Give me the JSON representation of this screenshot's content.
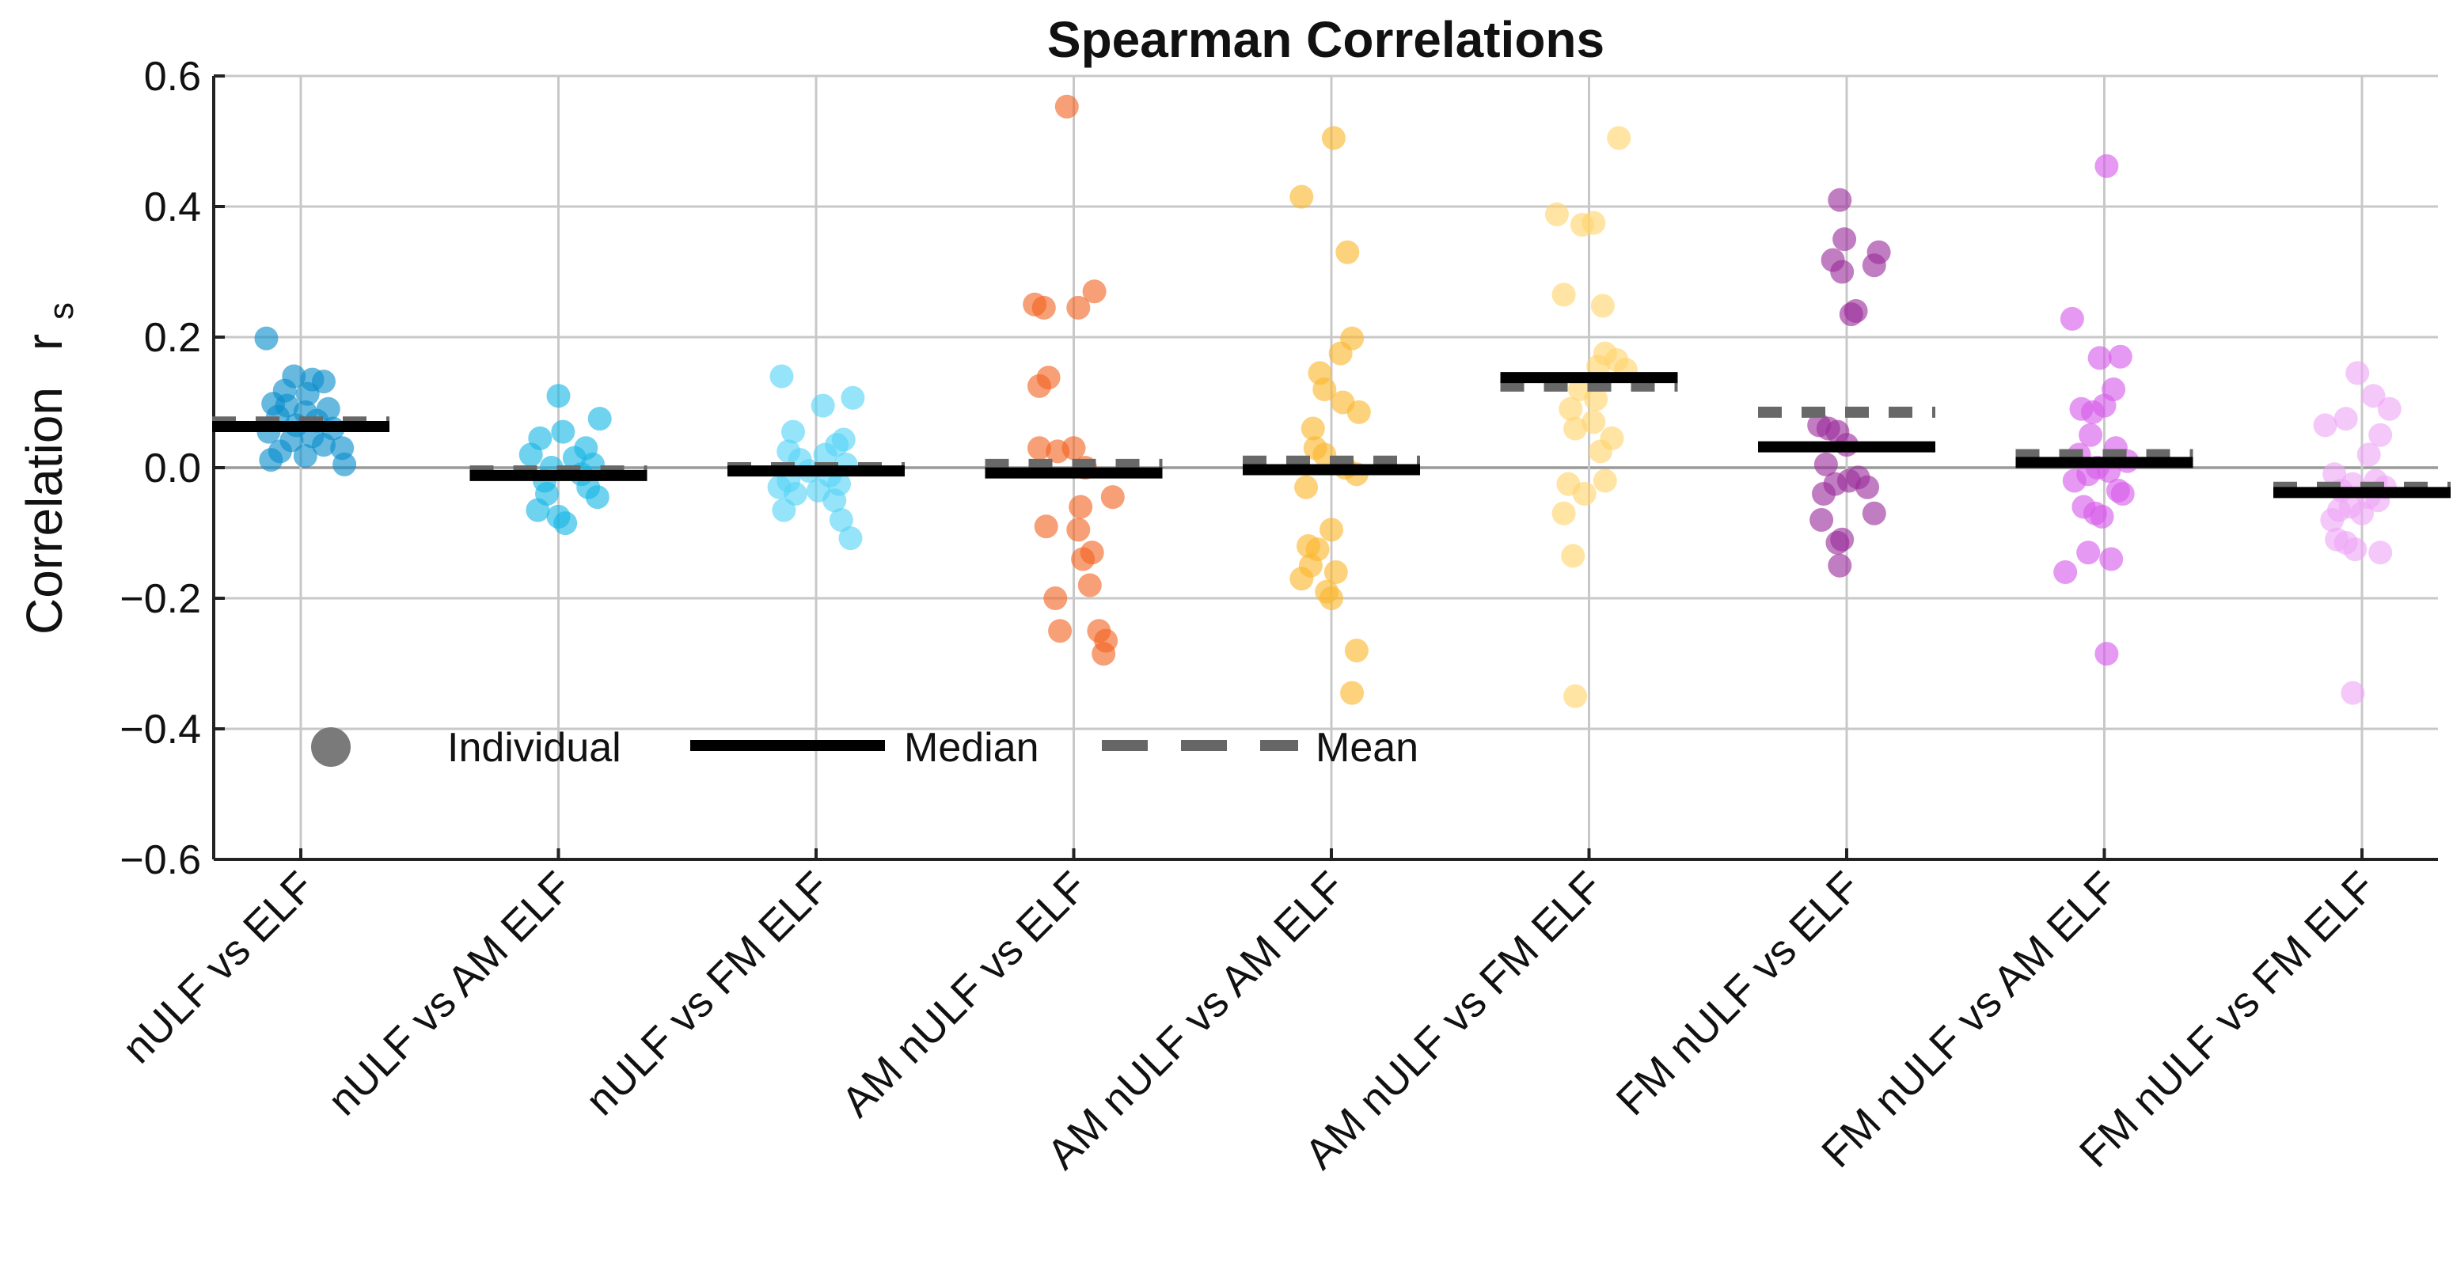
{
  "chart_data": {
    "type": "scatter",
    "title": "Spearman Correlations",
    "ylabel": "Correlation",
    "ylabel_symbol": "r",
    "ylabel_subscript": "s",
    "ylim": [
      -0.6,
      0.6
    ],
    "yticks": [
      -0.6,
      -0.4,
      -0.2,
      0.0,
      0.2,
      0.4,
      0.6
    ],
    "ytick_labels": [
      "−0.6",
      "−0.4",
      "−0.2",
      "0.0",
      "0.2",
      "0.4",
      "0.6"
    ],
    "grid": true,
    "legend": {
      "placement": "lower-left",
      "individual_label": "Individual",
      "median_label": "Median",
      "mean_label": "Mean"
    },
    "categories": [
      {
        "label": "nULF vs ELF",
        "color": "#0a8ecb",
        "median": 0.063,
        "mean": 0.07,
        "points": [
          [
            0.198,
            -0.15
          ],
          [
            0.14,
            -0.03
          ],
          [
            0.135,
            0.05
          ],
          [
            0.132,
            0.1
          ],
          [
            0.118,
            -0.07
          ],
          [
            0.113,
            0.03
          ],
          [
            0.098,
            -0.12
          ],
          [
            0.095,
            -0.06
          ],
          [
            0.09,
            0.12
          ],
          [
            0.085,
            0.02
          ],
          [
            0.078,
            -0.1
          ],
          [
            0.072,
            0.07
          ],
          [
            0.065,
            -0.02
          ],
          [
            0.06,
            0.14
          ],
          [
            0.055,
            -0.14
          ],
          [
            0.048,
            0.05
          ],
          [
            0.042,
            -0.04
          ],
          [
            0.035,
            0.1
          ],
          [
            0.03,
            0.18
          ],
          [
            0.025,
            -0.09
          ],
          [
            0.018,
            0.02
          ],
          [
            0.012,
            -0.13
          ],
          [
            0.005,
            0.19
          ]
        ]
      },
      {
        "label": "nULF vs AM ELF",
        "color": "#16b7e3",
        "median": -0.012,
        "mean": -0.005,
        "points": [
          [
            0.11,
            0.0
          ],
          [
            0.075,
            0.18
          ],
          [
            0.055,
            0.02
          ],
          [
            0.045,
            -0.08
          ],
          [
            0.03,
            0.12
          ],
          [
            0.02,
            -0.12
          ],
          [
            0.015,
            0.07
          ],
          [
            0.005,
            0.15
          ],
          [
            0.0,
            -0.03
          ],
          [
            -0.01,
            0.1
          ],
          [
            -0.02,
            -0.06
          ],
          [
            -0.03,
            0.13
          ],
          [
            -0.04,
            -0.05
          ],
          [
            -0.045,
            0.17
          ],
          [
            -0.065,
            -0.09
          ],
          [
            -0.075,
            0.0
          ],
          [
            -0.085,
            0.03
          ]
        ]
      },
      {
        "label": "nULF vs FM ELF",
        "color": "#55d4f5",
        "median": -0.005,
        "mean": 0.0,
        "points": [
          [
            0.14,
            -0.15
          ],
          [
            0.107,
            0.16
          ],
          [
            0.095,
            0.03
          ],
          [
            0.055,
            -0.1
          ],
          [
            0.043,
            0.12
          ],
          [
            0.035,
            0.09
          ],
          [
            0.025,
            -0.12
          ],
          [
            0.02,
            0.04
          ],
          [
            0.012,
            -0.07
          ],
          [
            0.005,
            0.13
          ],
          [
            -0.005,
            -0.03
          ],
          [
            -0.012,
            0.06
          ],
          [
            -0.02,
            -0.12
          ],
          [
            -0.025,
            0.1
          ],
          [
            -0.03,
            -0.16
          ],
          [
            -0.035,
            0.01
          ],
          [
            -0.04,
            -0.09
          ],
          [
            -0.05,
            0.08
          ],
          [
            -0.065,
            -0.14
          ],
          [
            -0.08,
            0.11
          ],
          [
            -0.108,
            0.15
          ]
        ]
      },
      {
        "label": "AM nULF vs ELF",
        "color": "#f26422",
        "median": -0.008,
        "mean": 0.005,
        "points": [
          [
            0.553,
            -0.03
          ],
          [
            0.27,
            0.09
          ],
          [
            0.25,
            -0.17
          ],
          [
            0.245,
            -0.13
          ],
          [
            0.245,
            0.02
          ],
          [
            0.138,
            -0.11
          ],
          [
            0.125,
            -0.15
          ],
          [
            0.03,
            0.0
          ],
          [
            0.03,
            -0.15
          ],
          [
            0.025,
            -0.07
          ],
          [
            0.0,
            0.05
          ],
          [
            -0.045,
            0.17
          ],
          [
            -0.06,
            0.03
          ],
          [
            -0.09,
            -0.12
          ],
          [
            -0.095,
            0.02
          ],
          [
            -0.13,
            0.08
          ],
          [
            -0.14,
            0.04
          ],
          [
            -0.18,
            0.07
          ],
          [
            -0.2,
            -0.08
          ],
          [
            -0.25,
            -0.06
          ],
          [
            -0.25,
            0.11
          ],
          [
            -0.265,
            0.14
          ],
          [
            -0.285,
            0.13
          ]
        ]
      },
      {
        "label": "AM nULF vs AM ELF",
        "color": "#fbb72d",
        "median": -0.003,
        "mean": 0.01,
        "points": [
          [
            0.505,
            0.01
          ],
          [
            0.415,
            -0.13
          ],
          [
            0.33,
            0.07
          ],
          [
            0.198,
            0.09
          ],
          [
            0.175,
            0.04
          ],
          [
            0.145,
            -0.05
          ],
          [
            0.12,
            -0.03
          ],
          [
            0.1,
            0.05
          ],
          [
            0.085,
            0.12
          ],
          [
            0.06,
            -0.08
          ],
          [
            0.03,
            -0.07
          ],
          [
            0.02,
            -0.03
          ],
          [
            0.0,
            0.06
          ],
          [
            -0.01,
            0.11
          ],
          [
            -0.03,
            -0.11
          ],
          [
            -0.095,
            0.0
          ],
          [
            -0.12,
            -0.1
          ],
          [
            -0.125,
            -0.06
          ],
          [
            -0.15,
            -0.09
          ],
          [
            -0.16,
            0.02
          ],
          [
            -0.17,
            -0.13
          ],
          [
            -0.19,
            -0.02
          ],
          [
            -0.2,
            0.0
          ],
          [
            -0.28,
            0.11
          ],
          [
            -0.345,
            0.09
          ]
        ]
      },
      {
        "label": "AM nULF vs FM ELF",
        "color": "#ffd36b",
        "median": 0.138,
        "mean": 0.125,
        "points": [
          [
            0.505,
            0.13
          ],
          [
            0.388,
            -0.14
          ],
          [
            0.375,
            0.02
          ],
          [
            0.372,
            -0.03
          ],
          [
            0.265,
            -0.11
          ],
          [
            0.248,
            0.06
          ],
          [
            0.175,
            0.07
          ],
          [
            0.165,
            0.12
          ],
          [
            0.155,
            0.04
          ],
          [
            0.15,
            0.16
          ],
          [
            0.12,
            -0.04
          ],
          [
            0.105,
            0.03
          ],
          [
            0.09,
            -0.08
          ],
          [
            0.07,
            0.02
          ],
          [
            0.06,
            -0.06
          ],
          [
            0.045,
            0.1
          ],
          [
            0.025,
            0.05
          ],
          [
            -0.02,
            0.07
          ],
          [
            -0.025,
            -0.09
          ],
          [
            -0.04,
            -0.02
          ],
          [
            -0.07,
            -0.11
          ],
          [
            -0.135,
            -0.07
          ],
          [
            -0.35,
            -0.06
          ]
        ]
      },
      {
        "label": "FM nULF vs ELF",
        "color": "#9b2d9b",
        "median": 0.032,
        "mean": 0.085,
        "points": [
          [
            0.41,
            -0.03
          ],
          [
            0.35,
            -0.01
          ],
          [
            0.33,
            0.14
          ],
          [
            0.318,
            -0.06
          ],
          [
            0.31,
            0.12
          ],
          [
            0.3,
            -0.02
          ],
          [
            0.24,
            0.04
          ],
          [
            0.235,
            0.02
          ],
          [
            0.065,
            -0.12
          ],
          [
            0.06,
            -0.08
          ],
          [
            0.055,
            -0.04
          ],
          [
            0.035,
            0.0
          ],
          [
            0.005,
            -0.09
          ],
          [
            -0.015,
            0.05
          ],
          [
            -0.02,
            0.01
          ],
          [
            -0.025,
            -0.05
          ],
          [
            -0.03,
            0.09
          ],
          [
            -0.04,
            -0.1
          ],
          [
            -0.07,
            0.12
          ],
          [
            -0.08,
            -0.11
          ],
          [
            -0.11,
            -0.02
          ],
          [
            -0.115,
            -0.04
          ],
          [
            -0.15,
            -0.03
          ]
        ]
      },
      {
        "label": "FM nULF vs AM ELF",
        "color": "#d65bea",
        "median": 0.008,
        "mean": 0.02,
        "points": [
          [
            0.462,
            0.01
          ],
          [
            0.228,
            -0.14
          ],
          [
            0.17,
            0.07
          ],
          [
            0.168,
            -0.02
          ],
          [
            0.12,
            0.04
          ],
          [
            0.095,
            0.0
          ],
          [
            0.09,
            -0.1
          ],
          [
            0.085,
            -0.05
          ],
          [
            0.05,
            -0.06
          ],
          [
            0.03,
            0.05
          ],
          [
            0.02,
            -0.11
          ],
          [
            0.01,
            0.1
          ],
          [
            0.0,
            -0.03
          ],
          [
            -0.005,
            0.02
          ],
          [
            -0.01,
            -0.07
          ],
          [
            -0.02,
            -0.13
          ],
          [
            -0.035,
            0.06
          ],
          [
            -0.04,
            0.08
          ],
          [
            -0.06,
            -0.09
          ],
          [
            -0.07,
            -0.04
          ],
          [
            -0.075,
            -0.01
          ],
          [
            -0.13,
            -0.07
          ],
          [
            -0.14,
            0.03
          ],
          [
            -0.16,
            -0.17
          ],
          [
            -0.285,
            0.01
          ]
        ]
      },
      {
        "label": "FM nULF vs FM ELF",
        "color": "#efa6f7",
        "median": -0.038,
        "mean": -0.03,
        "points": [
          [
            0.145,
            -0.02
          ],
          [
            0.11,
            0.05
          ],
          [
            0.09,
            0.12
          ],
          [
            0.075,
            -0.07
          ],
          [
            0.065,
            -0.16
          ],
          [
            0.05,
            0.08
          ],
          [
            0.02,
            0.03
          ],
          [
            -0.01,
            -0.12
          ],
          [
            -0.02,
            0.06
          ],
          [
            -0.025,
            -0.04
          ],
          [
            -0.03,
            0.1
          ],
          [
            -0.035,
            -0.09
          ],
          [
            -0.045,
            0.03
          ],
          [
            -0.05,
            0.07
          ],
          [
            -0.06,
            -0.05
          ],
          [
            -0.065,
            -0.1
          ],
          [
            -0.07,
            0.0
          ],
          [
            -0.08,
            -0.13
          ],
          [
            -0.11,
            -0.11
          ],
          [
            -0.115,
            -0.07
          ],
          [
            -0.125,
            -0.03
          ],
          [
            -0.13,
            0.08
          ],
          [
            -0.345,
            -0.04
          ]
        ]
      }
    ]
  }
}
